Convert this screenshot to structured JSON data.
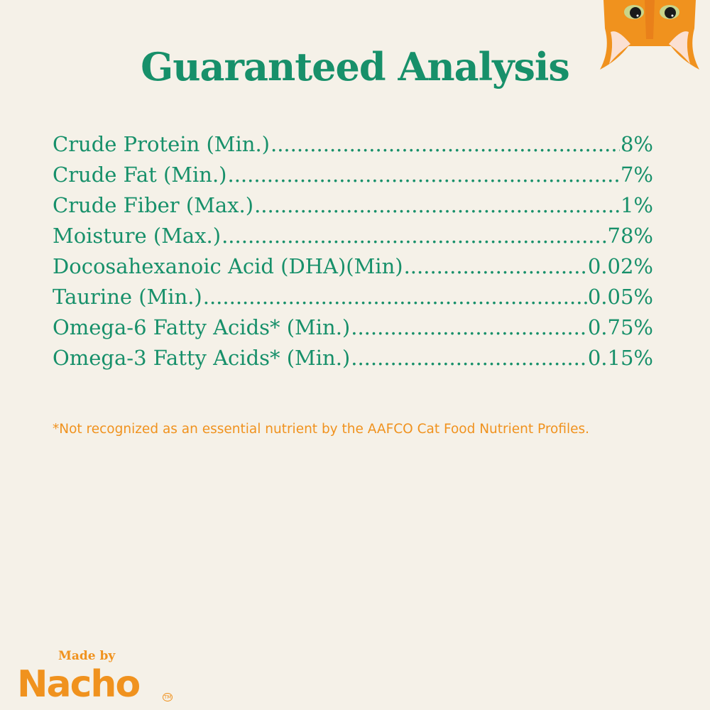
{
  "title": "Guaranteed Analysis",
  "rows": [
    {
      "label": "Crude Protein (Min.)",
      "value": "8%"
    },
    {
      "label": "Crude Fat (Min.)",
      "value": "7%"
    },
    {
      "label": "Crude Fiber (Max.)",
      "value": "1%"
    },
    {
      "label": "Moisture (Max.)",
      "value": "78%"
    },
    {
      "label": "Docosahexanoic Acid (DHA)(Min)",
      "value": "0.02%"
    },
    {
      "label": "Taurine (Min.)",
      "value": "0.05%"
    },
    {
      "label": "Omega-6 Fatty Acids* (Min.)",
      "value": "0.75%"
    },
    {
      "label": "Omega-3 Fatty Acids* (Min.)",
      "value": "0.15%"
    }
  ],
  "footnote": "*Not recognized as an essential nutrient by the AAFCO Cat Food Nutrient Profiles.",
  "logo": {
    "made_by": "Made by",
    "brand": "Nacho",
    "tm": "TM"
  },
  "colors": {
    "green": "#17906a",
    "orange": "#f0921e",
    "background": "#f5f1e8"
  }
}
